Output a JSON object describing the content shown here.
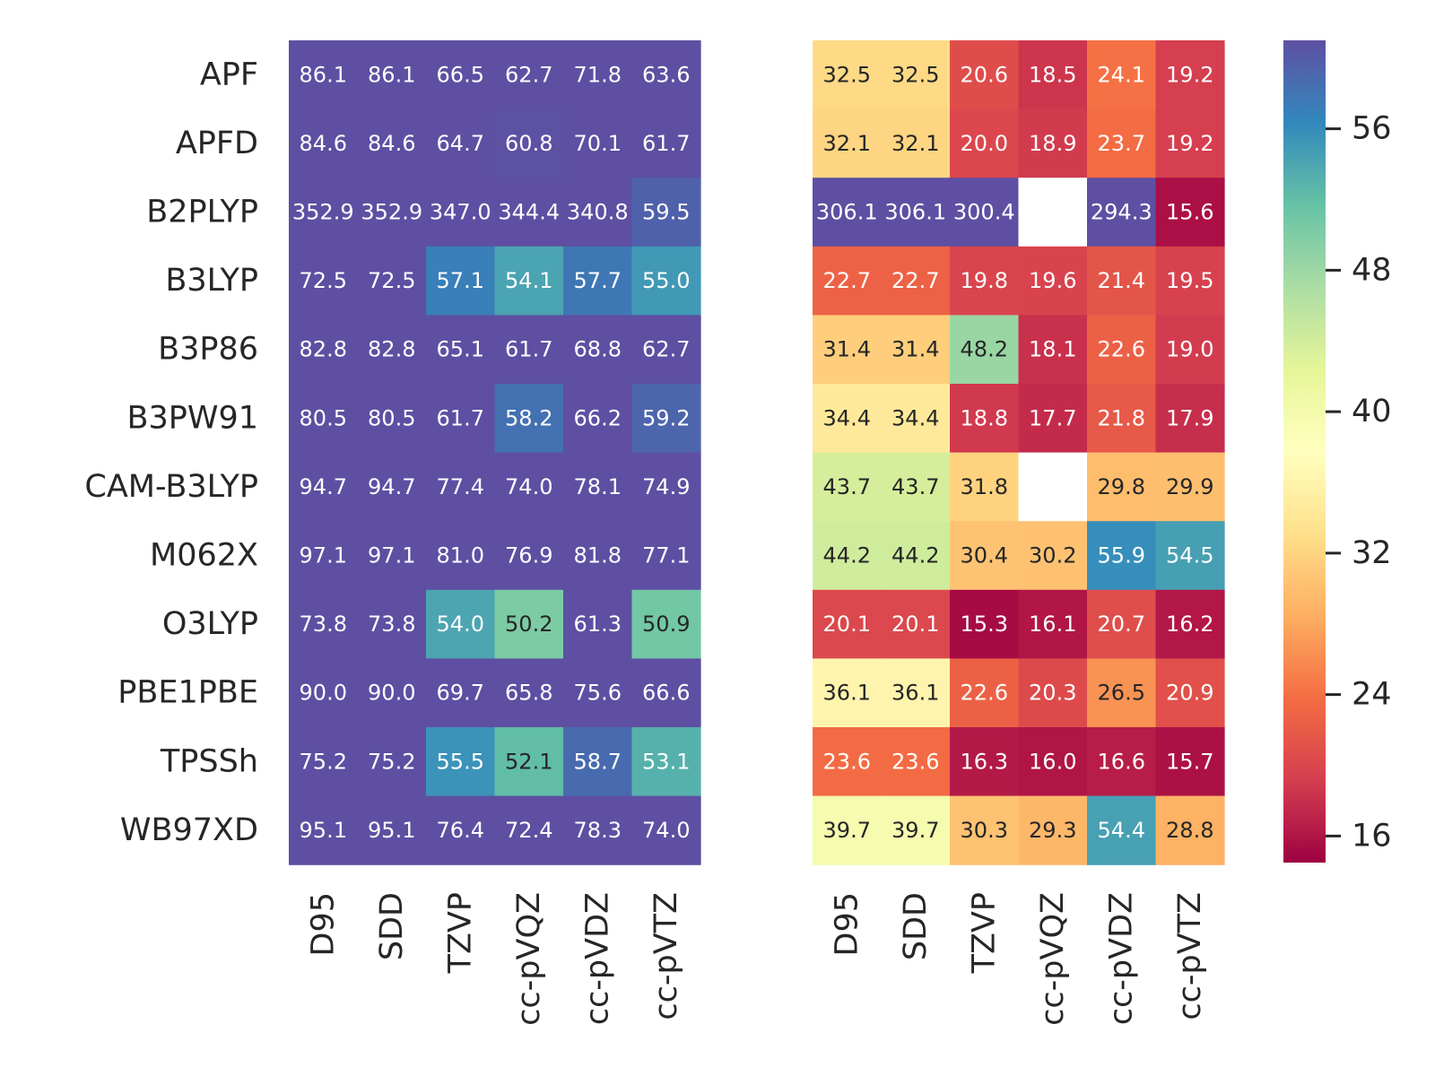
{
  "chart_data": {
    "type": "heatmap",
    "rows": [
      "APF",
      "APFD",
      "B2PLYP",
      "B3LYP",
      "B3P86",
      "B3PW91",
      "CAM-B3LYP",
      "M062X",
      "O3LYP",
      "PBE1PBE",
      "TPSSh",
      "WB97XD"
    ],
    "columns": [
      "D95",
      "SDD",
      "TZVP",
      "cc-pVQZ",
      "cc-pVDZ",
      "cc-pVTZ"
    ],
    "color_scale": {
      "name": "Spectral",
      "vmin": 14.5,
      "vmax": 61.0,
      "ticks": [
        16,
        24,
        32,
        40,
        48,
        56
      ]
    },
    "panels": [
      {
        "name": "left",
        "values": [
          [
            86.1,
            86.1,
            66.5,
            62.7,
            71.8,
            63.6
          ],
          [
            84.6,
            84.6,
            64.7,
            60.8,
            70.1,
            61.7
          ],
          [
            352.9,
            352.9,
            347.0,
            344.4,
            340.8,
            59.5
          ],
          [
            72.5,
            72.5,
            57.1,
            54.1,
            57.7,
            55.0
          ],
          [
            82.8,
            82.8,
            65.1,
            61.7,
            68.8,
            62.7
          ],
          [
            80.5,
            80.5,
            61.7,
            58.2,
            66.2,
            59.2
          ],
          [
            94.7,
            94.7,
            77.4,
            74.0,
            78.1,
            74.9
          ],
          [
            97.1,
            97.1,
            81.0,
            76.9,
            81.8,
            77.1
          ],
          [
            73.8,
            73.8,
            54.0,
            50.2,
            61.3,
            50.9
          ],
          [
            90.0,
            90.0,
            69.7,
            65.8,
            75.6,
            66.6
          ],
          [
            75.2,
            75.2,
            55.5,
            52.1,
            58.7,
            53.1
          ],
          [
            95.1,
            95.1,
            76.4,
            72.4,
            78.3,
            74.0
          ]
        ]
      },
      {
        "name": "right",
        "values": [
          [
            32.5,
            32.5,
            20.6,
            18.5,
            24.1,
            19.2
          ],
          [
            32.1,
            32.1,
            20.0,
            18.9,
            23.7,
            19.2
          ],
          [
            306.1,
            306.1,
            300.4,
            null,
            294.3,
            15.6
          ],
          [
            22.7,
            22.7,
            19.8,
            19.6,
            21.4,
            19.5
          ],
          [
            31.4,
            31.4,
            48.2,
            18.1,
            22.6,
            19.0
          ],
          [
            34.4,
            34.4,
            18.8,
            17.7,
            21.8,
            17.9
          ],
          [
            43.7,
            43.7,
            31.8,
            null,
            29.8,
            29.9
          ],
          [
            44.2,
            44.2,
            30.4,
            30.2,
            55.9,
            54.5
          ],
          [
            20.1,
            20.1,
            15.3,
            16.1,
            20.7,
            16.2
          ],
          [
            36.1,
            36.1,
            22.6,
            20.3,
            26.5,
            20.9
          ],
          [
            23.6,
            23.6,
            16.3,
            16.0,
            16.6,
            15.7
          ],
          [
            39.7,
            39.7,
            30.3,
            29.3,
            54.4,
            28.8
          ]
        ]
      }
    ],
    "title": "",
    "xlabel": "",
    "ylabel": ""
  }
}
